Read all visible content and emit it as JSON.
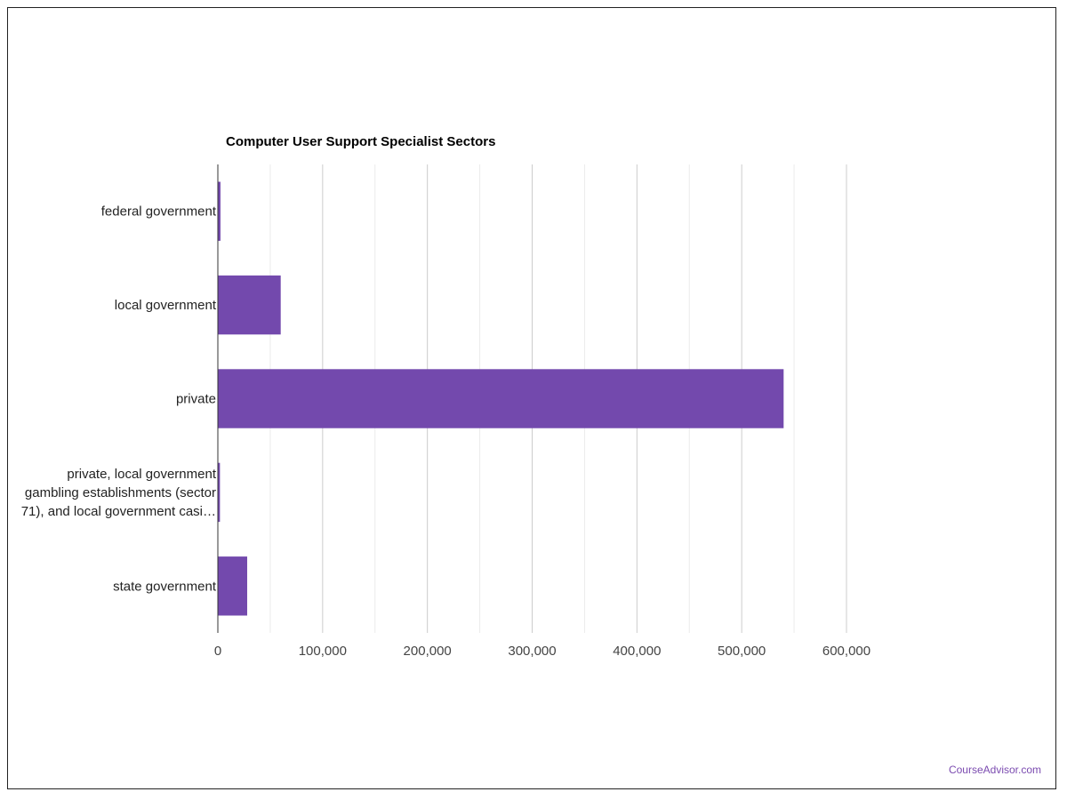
{
  "chart_data": {
    "type": "bar",
    "orientation": "horizontal",
    "title": "Computer User Support Specialist Sectors",
    "categories": [
      "federal government",
      "local government",
      "private",
      "private, local government gambling establishments (sector 71), and local government casi…",
      "state government"
    ],
    "category_label_lines": [
      [
        "federal government"
      ],
      [
        "local government"
      ],
      [
        "private"
      ],
      [
        "private, local government",
        "gambling establishments (sector",
        "71), and local government casi…"
      ],
      [
        "state government"
      ]
    ],
    "values": [
      2500,
      60000,
      540000,
      2000,
      28000
    ],
    "xlim": [
      0,
      600000
    ],
    "ticks": [
      0,
      100000,
      200000,
      300000,
      400000,
      500000,
      600000
    ],
    "tick_labels": [
      "0",
      "100,000",
      "200,000",
      "300,000",
      "400,000",
      "500,000",
      "600,000"
    ],
    "grid": true,
    "legend": "none",
    "bar_color": "#7349ad",
    "grid_color": "#dddddd",
    "axis_color": "#333333"
  },
  "credit": "CourseAdvisor.com"
}
